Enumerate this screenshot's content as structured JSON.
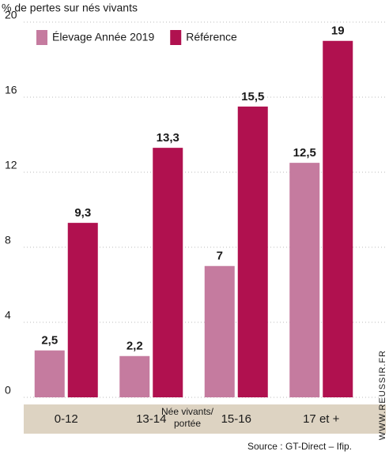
{
  "chart_data": {
    "type": "bar",
    "y_label": "% de pertes sur nés vivants",
    "x_label": [
      "Née vivants/",
      "portée"
    ],
    "categories": [
      "0-12",
      "13-14",
      "15-16",
      "17 et +"
    ],
    "series": [
      {
        "name": "Élevage Année 2019",
        "color": "#c57b9f",
        "values": [
          2.5,
          2.2,
          7,
          12.5
        ],
        "value_labels": [
          "2,5",
          "2,2",
          "7",
          "12,5"
        ]
      },
      {
        "name": "Référence",
        "color": "#b0114f",
        "values": [
          9.3,
          13.3,
          15.5,
          19
        ],
        "value_labels": [
          "9,3",
          "13,3",
          "15,5",
          "19"
        ]
      }
    ],
    "ylim": [
      0,
      20
    ],
    "yticks": [
      0,
      4,
      8,
      12,
      16,
      20
    ],
    "grid": true,
    "legend": "top-left",
    "source": "Source : GT-Direct – Ifip.",
    "watermark": "WWW.REUSSIR.FR"
  }
}
